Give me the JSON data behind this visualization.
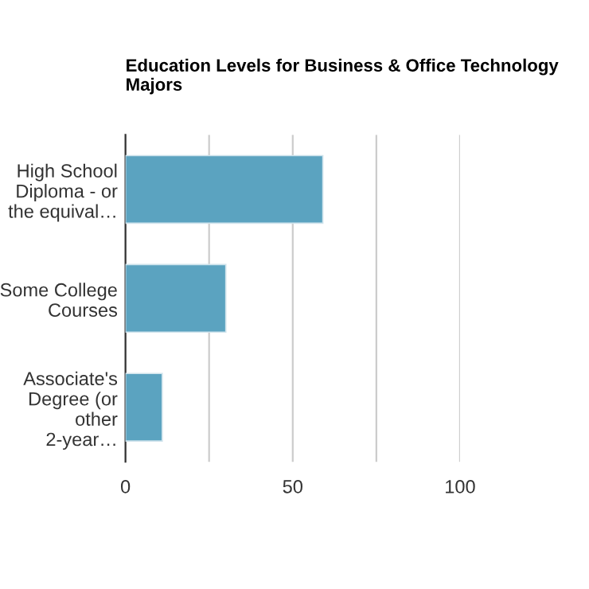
{
  "chart_data": {
    "type": "bar",
    "orientation": "horizontal",
    "title": "Education Levels for Business & Office Technology Majors",
    "categories": [
      "High School Diploma - or the equival…",
      "Some College Courses",
      "Associate's Degree (or other 2-year…"
    ],
    "values": [
      59,
      30,
      11
    ],
    "color": "#5ba3c0",
    "xlim": [
      0,
      100
    ],
    "xticks": [
      0,
      {
        "value": 25,
        "label": null
      },
      50,
      {
        "value": 75,
        "label": null
      },
      100
    ],
    "grid": "x"
  }
}
